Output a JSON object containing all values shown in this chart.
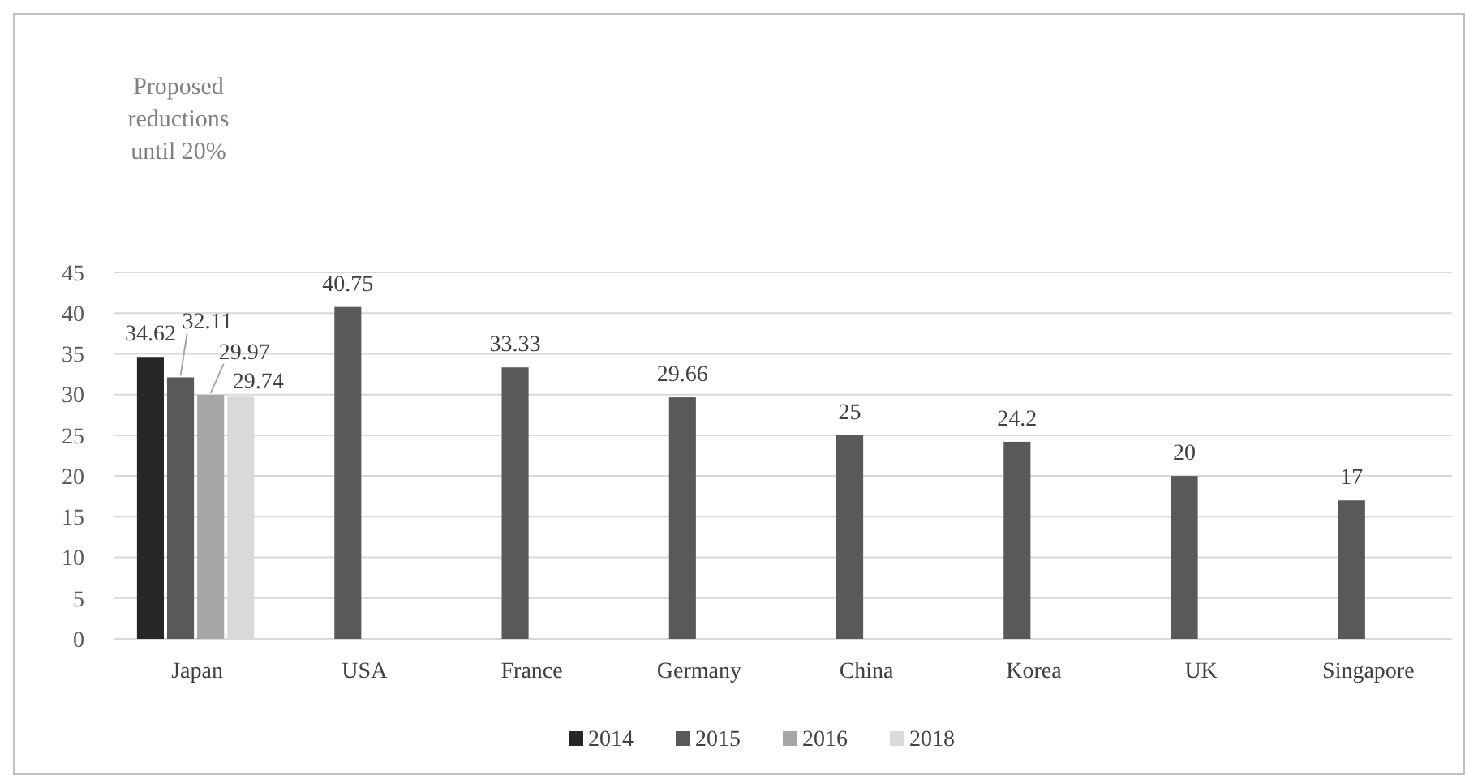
{
  "chart_data": {
    "type": "bar",
    "ylabel": "Proposed reductions until 20%",
    "categories": [
      "Japan",
      "USA",
      "France",
      "Germany",
      "China",
      "Korea",
      "UK",
      "Singapore"
    ],
    "series": [
      {
        "name": "2014",
        "color": "#262626",
        "values": [
          34.62,
          null,
          null,
          null,
          null,
          null,
          null,
          null
        ]
      },
      {
        "name": "2015",
        "color": "#595959",
        "values": [
          32.11,
          40.75,
          33.33,
          29.66,
          25,
          24.2,
          20,
          17
        ]
      },
      {
        "name": "2016",
        "color": "#a6a6a6",
        "values": [
          29.97,
          null,
          null,
          null,
          null,
          null,
          null,
          null
        ]
      },
      {
        "name": "2018",
        "color": "#d9d9d9",
        "values": [
          29.74,
          null,
          null,
          null,
          null,
          null,
          null,
          null
        ]
      }
    ],
    "ylim": [
      0,
      45
    ],
    "yticks": [
      0,
      5,
      10,
      15,
      20,
      25,
      30,
      35,
      40,
      45
    ],
    "grid": "y",
    "legend": "bottom",
    "data_labels": true
  }
}
